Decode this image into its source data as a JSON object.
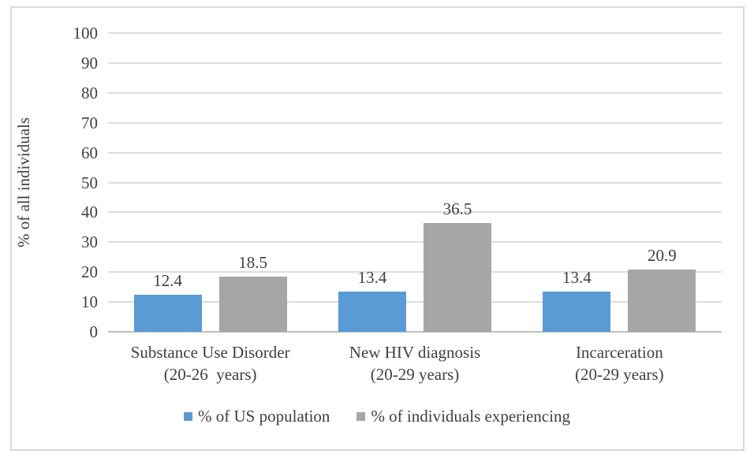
{
  "chart_data": {
    "type": "bar",
    "title": "",
    "xlabel": "",
    "ylabel": "% of all individuals",
    "ylim": [
      0,
      100
    ],
    "yticks": [
      0,
      10,
      20,
      30,
      40,
      50,
      60,
      70,
      80,
      90,
      100
    ],
    "grid": true,
    "data_labels": true,
    "legend_position": "bottom",
    "categories": [
      [
        "Substance Use Disorder",
        "(20-26  years)"
      ],
      [
        "New HIV diagnosis",
        "(20-29 years)"
      ],
      [
        "Incarceration",
        "(20-29 years)"
      ]
    ],
    "series": [
      {
        "name": "% of US population",
        "color": "#5B9BD5",
        "values": [
          12.4,
          13.4,
          13.4
        ]
      },
      {
        "name": "% of individuals experiencing",
        "color": "#A6A6A6",
        "values": [
          18.5,
          36.5,
          20.9
        ]
      }
    ]
  },
  "colors": {
    "gridline": "#DCDCDC",
    "axis_line": "#BFBFBF",
    "text": "#404040",
    "frame_border": "#D9D9D9",
    "background": "#FFFFFF"
  }
}
